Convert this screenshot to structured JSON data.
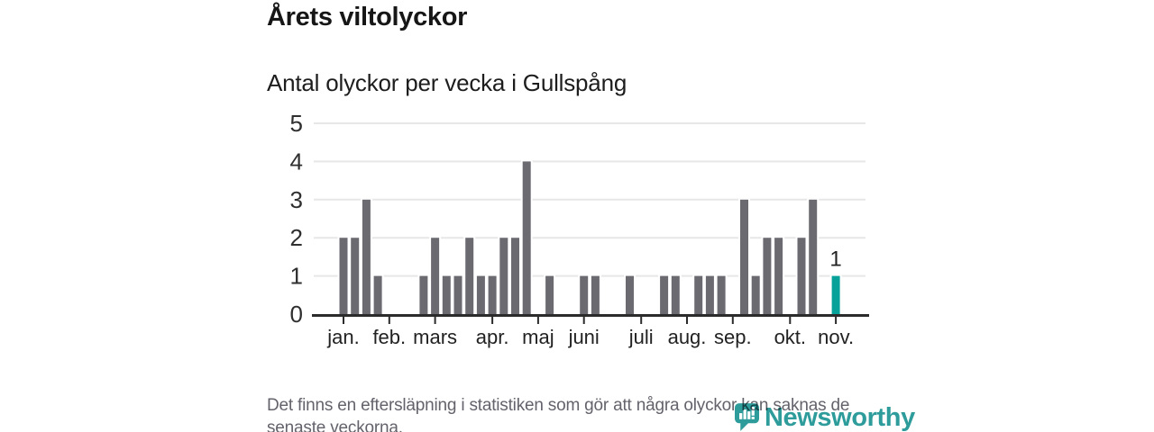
{
  "header": {
    "title": "Årets viltolyckor",
    "subtitle": "Antal olyckor per vecka i Gullspång"
  },
  "chart_data": {
    "type": "bar",
    "title": "Årets viltolyckor",
    "subtitle": "Antal olyckor per vecka i Gullspång",
    "xlabel": "",
    "ylabel": "",
    "x_unit": "vecka",
    "ylim": [
      0,
      5
    ],
    "yticks": [
      0,
      1,
      2,
      3,
      4,
      5
    ],
    "grid": true,
    "weekly_values": [
      2,
      2,
      3,
      1,
      0,
      0,
      0,
      1,
      2,
      1,
      1,
      2,
      1,
      1,
      2,
      2,
      4,
      0,
      1,
      0,
      0,
      1,
      1,
      0,
      0,
      1,
      0,
      0,
      1,
      1,
      0,
      1,
      1,
      1,
      0,
      3,
      1,
      2,
      2,
      0,
      2,
      3,
      0,
      1
    ],
    "month_ticks": [
      {
        "label": "jan.",
        "week": 0
      },
      {
        "label": "feb.",
        "week": 4
      },
      {
        "label": "mars",
        "week": 8
      },
      {
        "label": "apr.",
        "week": 13
      },
      {
        "label": "maj",
        "week": 17
      },
      {
        "label": "juni",
        "week": 21
      },
      {
        "label": "juli",
        "week": 26
      },
      {
        "label": "aug.",
        "week": 30
      },
      {
        "label": "sep.",
        "week": 34
      },
      {
        "label": "okt.",
        "week": 39
      },
      {
        "label": "nov.",
        "week": 43
      }
    ],
    "highlight": {
      "week": 43,
      "value": 1,
      "label": "1"
    },
    "colors": {
      "bar": "#6b6a71",
      "highlight": "#06a199",
      "grid": "#e7e7e7",
      "axis": "#2b2b2b",
      "tick_label": "#2f2f2f",
      "month_label": "#222222",
      "annotation": "#222222"
    }
  },
  "footer": {
    "note": "Det finns en eftersläpning i statistiken som gör att några olyckor kan saknas de senaste veckorna.",
    "brand": "Newsworthy",
    "brand_color": "#2e9c9b"
  }
}
